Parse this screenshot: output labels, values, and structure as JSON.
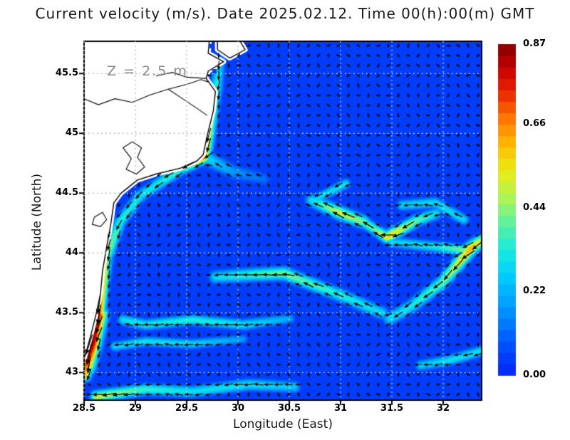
{
  "title": "Current velocity (m/s). Date 2025.02.12. Time 00(h):00(m) GMT",
  "annotation": "Z = 2.5 m",
  "axes": {
    "xlabel": "Longitude (East)",
    "ylabel": "Latitude (North)",
    "xtick_labels": [
      "28.5",
      "29",
      "29.5",
      "30",
      "30.5",
      "31",
      "31.5",
      "32"
    ],
    "ytick_labels": [
      "45.5",
      "45",
      "44.5",
      "44",
      "43.5",
      "43"
    ]
  },
  "colors": {
    "sea_low": "#0a2df2",
    "land": "#ffffff",
    "coastline": "#000000",
    "arrows": "#050505",
    "grid_sea": "#ffffff",
    "grid_land": "#9a9a9a",
    "annotation_gray": "#8a8a8a",
    "frame": "#000000"
  },
  "chart_data": {
    "type": "heatmap",
    "overlay": "quiver",
    "title": "Current velocity (m/s). Date 2025.02.12. Time 00(h):00(m) GMT",
    "xlabel": "Longitude (East)",
    "ylabel": "Latitude (North)",
    "xlim": [
      28.5,
      32.375
    ],
    "ylim": [
      42.77,
      45.77
    ],
    "xticks": [
      28.5,
      29,
      29.5,
      30,
      30.5,
      31,
      31.5,
      32
    ],
    "yticks": [
      45.5,
      45,
      44.5,
      44,
      43.5,
      43
    ],
    "grid": true,
    "depth_m": 2.5,
    "background_value": 0.045,
    "colorbar": {
      "min": 0.0,
      "max": 0.87,
      "ticks": [
        0.0,
        0.22,
        0.44,
        0.66,
        0.87
      ],
      "tick_labels": [
        "0.00",
        "0.22",
        "0.44",
        "0.66",
        "0.87"
      ],
      "steps": 29,
      "colormap": [
        [
          0.0,
          [
            5,
            35,
            250
          ]
        ],
        [
          0.1,
          [
            0,
            85,
            255
          ]
        ],
        [
          0.2,
          [
            0,
            150,
            255
          ]
        ],
        [
          0.3,
          [
            0,
            205,
            255
          ]
        ],
        [
          0.38,
          [
            25,
            235,
            222
          ]
        ],
        [
          0.46,
          [
            95,
            240,
            160
          ]
        ],
        [
          0.54,
          [
            175,
            245,
            85
          ]
        ],
        [
          0.62,
          [
            235,
            235,
            20
          ]
        ],
        [
          0.7,
          [
            255,
            185,
            0
          ]
        ],
        [
          0.78,
          [
            255,
            115,
            0
          ]
        ],
        [
          0.86,
          [
            232,
            35,
            0
          ]
        ],
        [
          0.93,
          [
            198,
            0,
            0
          ]
        ],
        [
          1.0,
          [
            130,
            0,
            0
          ]
        ]
      ]
    },
    "features": [
      {
        "name": "western-boundary-current",
        "width": 0.055,
        "path": [
          [
            29.82,
            45.6
          ],
          [
            29.79,
            45.38
          ],
          [
            29.74,
            45.12
          ],
          [
            29.69,
            44.88
          ],
          [
            29.66,
            44.8
          ],
          [
            29.44,
            44.7
          ],
          [
            29.05,
            44.48
          ],
          [
            28.85,
            44.26
          ],
          [
            28.72,
            43.97
          ],
          [
            28.67,
            43.66
          ],
          [
            28.63,
            43.46
          ],
          [
            28.57,
            43.22
          ],
          [
            28.51,
            42.98
          ]
        ],
        "values": [
          0.25,
          0.35,
          0.45,
          0.6,
          0.68,
          0.36,
          0.3,
          0.34,
          0.45,
          0.6,
          0.84,
          0.82,
          0.6
        ]
      },
      {
        "name": "coastal-jet-red-core",
        "width": 0.08,
        "path": [
          [
            28.64,
            43.48
          ],
          [
            28.57,
            43.24
          ],
          [
            28.52,
            43.06
          ]
        ],
        "values": [
          0.75,
          0.88,
          0.7
        ]
      },
      {
        "name": "delta-offshore-tail",
        "width": 0.07,
        "path": [
          [
            30.25,
            44.62
          ],
          [
            29.95,
            44.68
          ],
          [
            29.68,
            44.8
          ]
        ],
        "values": [
          0.12,
          0.18,
          0.3
        ]
      },
      {
        "name": "band-lat-43.4",
        "width": 0.05,
        "path": [
          [
            30.5,
            43.45
          ],
          [
            30.05,
            43.4
          ],
          [
            29.55,
            43.44
          ],
          [
            29.1,
            43.4
          ],
          [
            28.88,
            43.44
          ]
        ],
        "values": [
          0.2,
          0.3,
          0.34,
          0.32,
          0.3
        ]
      },
      {
        "name": "band-lat-43.25",
        "width": 0.045,
        "path": [
          [
            30.05,
            43.28
          ],
          [
            29.55,
            43.24
          ],
          [
            29.1,
            43.26
          ],
          [
            28.8,
            43.22
          ]
        ],
        "values": [
          0.18,
          0.28,
          0.3,
          0.28
        ]
      },
      {
        "name": "bottom-band",
        "width": 0.055,
        "path": [
          [
            30.55,
            42.88
          ],
          [
            30.1,
            42.9
          ],
          [
            29.55,
            42.84
          ],
          [
            29.1,
            42.86
          ],
          [
            28.62,
            42.8
          ]
        ],
        "values": [
          0.25,
          0.3,
          0.3,
          0.36,
          0.5
        ]
      },
      {
        "name": "mid-band-lat-43.8",
        "width": 0.06,
        "path": [
          [
            31.4,
            43.5
          ],
          [
            31.02,
            43.64
          ],
          [
            30.45,
            43.83
          ],
          [
            30.18,
            43.82
          ],
          [
            29.78,
            43.8
          ]
        ],
        "values": [
          0.28,
          0.33,
          0.42,
          0.38,
          0.28
        ]
      },
      {
        "name": "rising-streak-east",
        "width": 0.06,
        "path": [
          [
            32.37,
            44.1
          ],
          [
            32.27,
            44.04
          ],
          [
            32.0,
            43.76
          ],
          [
            31.7,
            43.56
          ],
          [
            31.48,
            43.45
          ]
        ],
        "values": [
          0.5,
          0.62,
          0.4,
          0.32,
          0.28
        ]
      },
      {
        "name": "right-band-lat-44",
        "width": 0.05,
        "path": [
          [
            32.25,
            44.02
          ],
          [
            31.95,
            44.05
          ],
          [
            31.5,
            44.09
          ]
        ],
        "values": [
          0.45,
          0.32,
          0.28
        ]
      },
      {
        "name": "meander-west-arm",
        "width": 0.06,
        "path": [
          [
            31.22,
            44.26
          ],
          [
            30.98,
            44.34
          ],
          [
            30.72,
            44.44
          ]
        ],
        "values": [
          0.42,
          0.5,
          0.3
        ]
      },
      {
        "name": "meander-neck",
        "width": 0.055,
        "path": [
          [
            31.93,
            44.33
          ],
          [
            31.74,
            44.27
          ],
          [
            31.47,
            44.14
          ]
        ],
        "values": [
          0.3,
          0.4,
          0.58
        ]
      },
      {
        "name": "meander-inner-link",
        "width": 0.05,
        "path": [
          [
            31.45,
            44.13
          ],
          [
            31.33,
            44.2
          ],
          [
            31.22,
            44.26
          ]
        ],
        "values": [
          0.55,
          0.4,
          0.42
        ]
      },
      {
        "name": "meander-top-arc",
        "width": 0.05,
        "path": [
          [
            32.2,
            44.28
          ],
          [
            31.92,
            44.42
          ],
          [
            31.6,
            44.4
          ]
        ],
        "values": [
          0.28,
          0.3,
          0.28
        ]
      },
      {
        "name": "northwest-faint-streak",
        "width": 0.045,
        "path": [
          [
            31.05,
            44.58
          ],
          [
            30.78,
            44.46
          ]
        ],
        "values": [
          0.3,
          0.28
        ]
      },
      {
        "name": "bottom-right-streak",
        "width": 0.05,
        "path": [
          [
            32.37,
            43.18
          ],
          [
            32.05,
            43.1
          ],
          [
            31.78,
            43.06
          ]
        ],
        "values": [
          0.3,
          0.3,
          0.26
        ]
      }
    ],
    "eddies": [
      {
        "lon": 31.02,
        "lat": 43.12,
        "radius": 0.3,
        "strength": 0.14
      }
    ],
    "map": {
      "land": [
        {
          "name": "west-coast-land",
          "path": [
            [
              28.5,
              45.77
            ],
            [
              29.72,
              45.77
            ],
            [
              29.71,
              45.67
            ],
            [
              29.86,
              45.6
            ],
            [
              29.71,
              45.52
            ],
            [
              29.69,
              45.46
            ],
            [
              29.78,
              45.35
            ],
            [
              29.76,
              45.19
            ],
            [
              29.7,
              44.98
            ],
            [
              29.66,
              44.82
            ],
            [
              29.6,
              44.77
            ],
            [
              29.44,
              44.71
            ],
            [
              29.2,
              44.66
            ],
            [
              29.02,
              44.61
            ],
            [
              28.86,
              44.5
            ],
            [
              28.79,
              44.42
            ],
            [
              28.76,
              44.24
            ],
            [
              28.72,
              44.05
            ],
            [
              28.68,
              43.85
            ],
            [
              28.66,
              43.66
            ],
            [
              28.62,
              43.5
            ],
            [
              28.58,
              43.36
            ],
            [
              28.53,
              43.2
            ],
            [
              28.5,
              43.12
            ]
          ]
        },
        {
          "name": "north-spit",
          "path": [
            [
              29.8,
              45.77
            ],
            [
              30.02,
              45.77
            ],
            [
              30.07,
              45.7
            ],
            [
              29.92,
              45.63
            ],
            [
              29.8,
              45.7
            ]
          ]
        }
      ],
      "lakes": [
        {
          "name": "delta-lagoon",
          "path": [
            [
              28.88,
              44.88
            ],
            [
              28.97,
              44.93
            ],
            [
              29.06,
              44.88
            ],
            [
              29.02,
              44.8
            ],
            [
              29.09,
              44.72
            ],
            [
              29.01,
              44.66
            ],
            [
              28.91,
              44.7
            ],
            [
              28.96,
              44.79
            ]
          ]
        },
        {
          "name": "coastal-lake",
          "path": [
            [
              28.6,
              44.3
            ],
            [
              28.68,
              44.34
            ],
            [
              28.72,
              44.28
            ],
            [
              28.66,
              44.22
            ],
            [
              28.58,
              44.24
            ]
          ]
        }
      ],
      "rivers": [
        {
          "name": "danube-main",
          "path": [
            [
              28.5,
              45.29
            ],
            [
              28.64,
              45.24
            ],
            [
              28.8,
              45.29
            ],
            [
              28.97,
              45.26
            ],
            [
              29.14,
              45.32
            ],
            [
              29.32,
              45.37
            ],
            [
              29.5,
              45.41
            ],
            [
              29.64,
              45.45
            ],
            [
              29.71,
              45.43
            ]
          ]
        },
        {
          "name": "danube-south-branch",
          "path": [
            [
              29.32,
              45.37
            ],
            [
              29.46,
              45.29
            ],
            [
              29.6,
              45.21
            ],
            [
              29.7,
              45.15
            ]
          ]
        },
        {
          "name": "danube-north-branch",
          "path": [
            [
              29.69,
              45.46
            ],
            [
              29.5,
              45.47
            ],
            [
              29.36,
              45.51
            ],
            [
              29.2,
              45.48
            ]
          ]
        }
      ],
      "sea_cells": [
        [
          29.74,
          45.73
        ],
        [
          29.77,
          45.52
        ]
      ]
    }
  }
}
